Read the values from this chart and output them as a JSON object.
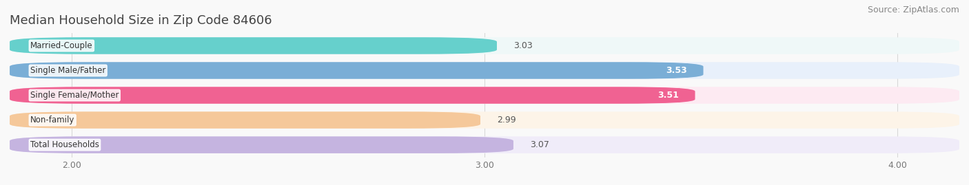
{
  "title": "Median Household Size in Zip Code 84606",
  "source": "Source: ZipAtlas.com",
  "categories": [
    "Married-Couple",
    "Single Male/Father",
    "Single Female/Mother",
    "Non-family",
    "Total Households"
  ],
  "values": [
    3.03,
    3.53,
    3.51,
    2.99,
    3.07
  ],
  "bar_colors": [
    "#66d0cc",
    "#7aaed6",
    "#f06292",
    "#f5c89a",
    "#c5b4e0"
  ],
  "bar_bg_colors": [
    "#eff8f8",
    "#e8f0fb",
    "#fdeaf2",
    "#fdf4e8",
    "#f0ecf9"
  ],
  "value_inside": [
    false,
    true,
    true,
    false,
    false
  ],
  "xlim_min": 1.85,
  "xlim_max": 4.15,
  "xstart": 0.0,
  "xticks": [
    2.0,
    3.0,
    4.0
  ],
  "xtick_labels": [
    "2.00",
    "3.00",
    "4.00"
  ],
  "title_fontsize": 13,
  "source_fontsize": 9,
  "bar_label_fontsize": 9,
  "category_fontsize": 8.5,
  "tick_fontsize": 9,
  "fig_width": 14.06,
  "fig_height": 2.69,
  "dpi": 100,
  "background_color": "#f9f9f9",
  "bar_height": 0.68,
  "bar_gap": 0.12
}
